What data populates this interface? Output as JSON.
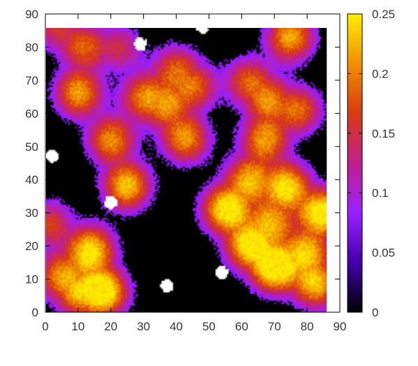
{
  "chart_data": {
    "type": "heatmap",
    "title": "",
    "xlabel": "",
    "ylabel": "",
    "xlim": [
      0,
      90
    ],
    "ylim": [
      0,
      90
    ],
    "data_extent": {
      "x": [
        0,
        86
      ],
      "y": [
        0,
        86
      ]
    },
    "x_ticks": [
      "0",
      "10",
      "20",
      "30",
      "40",
      "50",
      "60",
      "70",
      "80",
      "90"
    ],
    "y_ticks": [
      "0",
      "10",
      "20",
      "30",
      "40",
      "50",
      "60",
      "70",
      "80",
      "90"
    ],
    "colorbar": {
      "range": [
        0,
        0.25
      ],
      "ticks": [
        "0",
        "0.05",
        "0.1",
        "0.15",
        "0.2",
        "0.25"
      ],
      "colormap": [
        "#000000",
        "#4400aa",
        "#9a20ff",
        "#c0208e",
        "#d83a12",
        "#f09000",
        "#ffee00"
      ],
      "saturation_color": "#ffffff"
    },
    "grid": false,
    "legend": "colorbar-right",
    "hotspots": [
      {
        "x": 10,
        "y": 66,
        "v": 0.21
      },
      {
        "x": 20,
        "y": 52,
        "v": 0.2
      },
      {
        "x": 25,
        "y": 38,
        "v": 0.23
      },
      {
        "x": 30,
        "y": 65,
        "v": 0.17
      },
      {
        "x": 43,
        "y": 52,
        "v": 0.2
      },
      {
        "x": 46,
        "y": 68,
        "v": 0.15
      },
      {
        "x": 40,
        "y": 74,
        "v": 0.15
      },
      {
        "x": 62,
        "y": 70,
        "v": 0.16
      },
      {
        "x": 67,
        "y": 52,
        "v": 0.19
      },
      {
        "x": 75,
        "y": 83,
        "v": 0.22
      },
      {
        "x": 55,
        "y": 31,
        "v": 0.24
      },
      {
        "x": 62,
        "y": 40,
        "v": 0.19
      },
      {
        "x": 74,
        "y": 38,
        "v": 0.22
      },
      {
        "x": 85,
        "y": 30,
        "v": 0.25
      },
      {
        "x": 69,
        "y": 27,
        "v": 0.17
      },
      {
        "x": 62,
        "y": 20,
        "v": 0.22
      },
      {
        "x": 70,
        "y": 13,
        "v": 0.25
      },
      {
        "x": 83,
        "y": 8,
        "v": 0.21
      },
      {
        "x": 80,
        "y": 18,
        "v": 0.19
      },
      {
        "x": 14,
        "y": 19,
        "v": 0.23
      },
      {
        "x": 18,
        "y": 6,
        "v": 0.25
      },
      {
        "x": 10,
        "y": 5,
        "v": 0.16
      },
      {
        "x": 4,
        "y": 11,
        "v": 0.17
      },
      {
        "x": 1,
        "y": 27,
        "v": 0.16
      },
      {
        "x": 12,
        "y": 80,
        "v": 0.16
      },
      {
        "x": 23,
        "y": 80,
        "v": 0.13
      },
      {
        "x": 3,
        "y": 86,
        "v": 0.14
      },
      {
        "x": 37,
        "y": 62,
        "v": 0.15
      },
      {
        "x": 78,
        "y": 61,
        "v": 0.17
      },
      {
        "x": 68,
        "y": 64,
        "v": 0.16
      }
    ],
    "saturated_spots": [
      {
        "x": 29,
        "y": 81
      },
      {
        "x": 2,
        "y": 47
      },
      {
        "x": 54,
        "y": 12
      },
      {
        "x": 20,
        "y": 33
      },
      {
        "x": 37,
        "y": 8
      },
      {
        "x": 48,
        "y": 86
      }
    ]
  }
}
